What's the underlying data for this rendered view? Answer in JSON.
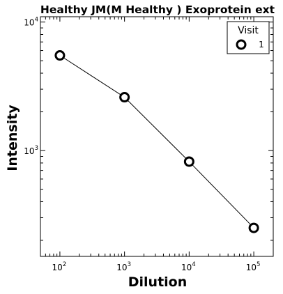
{
  "chart_data": {
    "type": "line",
    "title": "Healthy JM(M Healthy ) Exoprotein ext",
    "xlabel": "Dilution",
    "ylabel": "Intensity",
    "x_scale": "log",
    "y_scale": "log",
    "xlim": [
      50,
      200000
    ],
    "ylim": [
      150,
      11000
    ],
    "x_ticks": [
      {
        "base": "10",
        "exp": "2",
        "value": 100
      },
      {
        "base": "10",
        "exp": "3",
        "value": 1000
      },
      {
        "base": "10",
        "exp": "4",
        "value": 10000
      },
      {
        "base": "10",
        "exp": "5",
        "value": 100000
      }
    ],
    "y_ticks": [
      {
        "base": "10",
        "exp": "3",
        "value": 1000
      },
      {
        "base": "10",
        "exp": "4",
        "value": 10000
      }
    ],
    "legend": {
      "title": "Visit",
      "position": "top-right"
    },
    "series": [
      {
        "name": "1",
        "marker": "open-circle",
        "color": "#000000",
        "x": [
          100,
          1000,
          10000,
          100000
        ],
        "y": [
          5500,
          2600,
          820,
          250
        ]
      }
    ]
  }
}
